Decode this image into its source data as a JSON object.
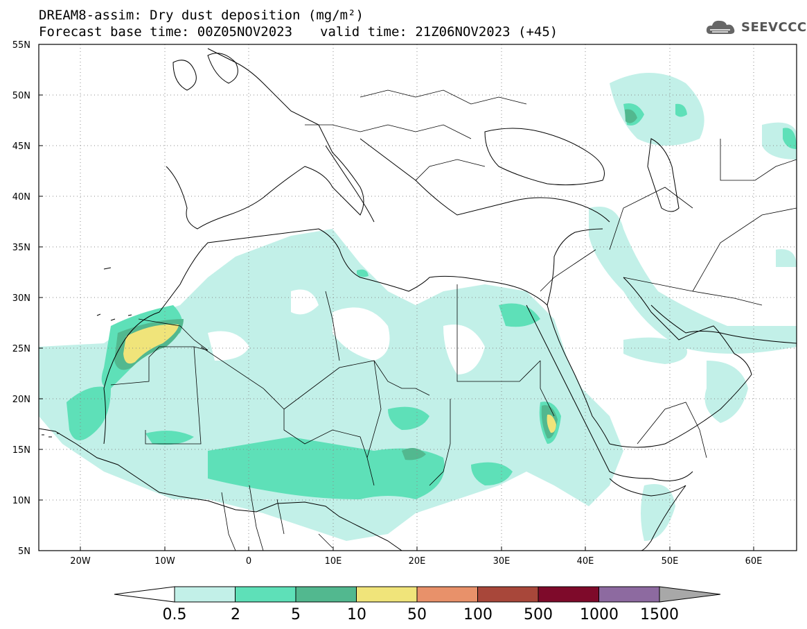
{
  "title": {
    "line1": "DREAM8-assim: Dry dust deposition (mg/m²)",
    "base_time": "Forecast base time: 00Z05NOV2023",
    "valid_time": "valid time: 21Z06NOV2023 (+45)"
  },
  "logo": {
    "text": "SEEVCCC",
    "icon": "cloud-icon"
  },
  "map": {
    "lon_range": [
      -25,
      65
    ],
    "lat_range": [
      5,
      55
    ],
    "lat_ticks": [
      {
        "value": 55,
        "label": "55N"
      },
      {
        "value": 50,
        "label": "50N"
      },
      {
        "value": 45,
        "label": "45N"
      },
      {
        "value": 40,
        "label": "40N"
      },
      {
        "value": 35,
        "label": "35N"
      },
      {
        "value": 30,
        "label": "30N"
      },
      {
        "value": 25,
        "label": "25N"
      },
      {
        "value": 20,
        "label": "20N"
      },
      {
        "value": 15,
        "label": "15N"
      },
      {
        "value": 10,
        "label": "10N"
      },
      {
        "value": 5,
        "label": "5N"
      }
    ],
    "lon_ticks": [
      {
        "value": -20,
        "label": "20W"
      },
      {
        "value": -10,
        "label": "10W"
      },
      {
        "value": 0,
        "label": "0"
      },
      {
        "value": 10,
        "label": "10E"
      },
      {
        "value": 20,
        "label": "20E"
      },
      {
        "value": 30,
        "label": "30E"
      },
      {
        "value": 40,
        "label": "40E"
      },
      {
        "value": 50,
        "label": "50E"
      },
      {
        "value": 60,
        "label": "60E"
      }
    ],
    "grid": "dotted"
  },
  "legend": {
    "labels": [
      "0.5",
      "2",
      "5",
      "10",
      "50",
      "100",
      "500",
      "1000",
      "1500"
    ],
    "colors": [
      "#ffffff",
      "#c2f0e8",
      "#5ee0b8",
      "#52b88f",
      "#f0e47a",
      "#e8916a",
      "#a8473a",
      "#7e0a2a",
      "#8d6aa0",
      "#a8a8a8"
    ]
  }
}
